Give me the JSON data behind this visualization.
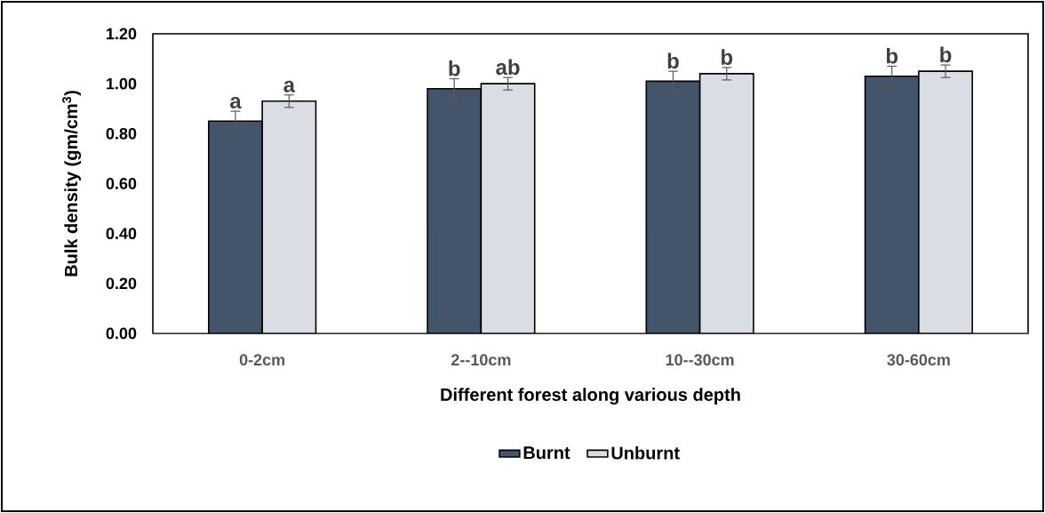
{
  "chart_data": {
    "type": "bar",
    "xlabel": "Different forest along various depth",
    "ylabel": "Bulk density (gm/cm$^{3}$)",
    "categories": [
      "0-2cm",
      "2--10cm",
      "10--30cm",
      "30-60cm"
    ],
    "series": [
      {
        "name": "Burnt",
        "color": "#44546a",
        "values": [
          0.85,
          0.98,
          1.01,
          1.03
        ],
        "errors": [
          0.04,
          0.04,
          0.04,
          0.04
        ],
        "value_labels": [
          "a",
          "b",
          "b",
          "b"
        ]
      },
      {
        "name": "Unburnt",
        "color": "#dadde3",
        "values": [
          0.93,
          1.0,
          1.04,
          1.05
        ],
        "errors": [
          0.025,
          0.025,
          0.025,
          0.025
        ],
        "value_labels": [
          "a",
          "ab",
          "b",
          "b"
        ]
      }
    ],
    "ylim": [
      0,
      1.2
    ],
    "yticks": [
      {
        "value": 0,
        "label": "0.00"
      },
      {
        "value": 0.2,
        "label": "0.20"
      },
      {
        "value": 0.4,
        "label": "0.40"
      },
      {
        "value": 0.6,
        "label": "0.60"
      },
      {
        "value": 0.8,
        "label": "0.80"
      },
      {
        "value": 1.0,
        "label": "1.00"
      },
      {
        "value": 1.2,
        "label": "1.20"
      }
    ],
    "legend": "bottom",
    "grid": false
  }
}
